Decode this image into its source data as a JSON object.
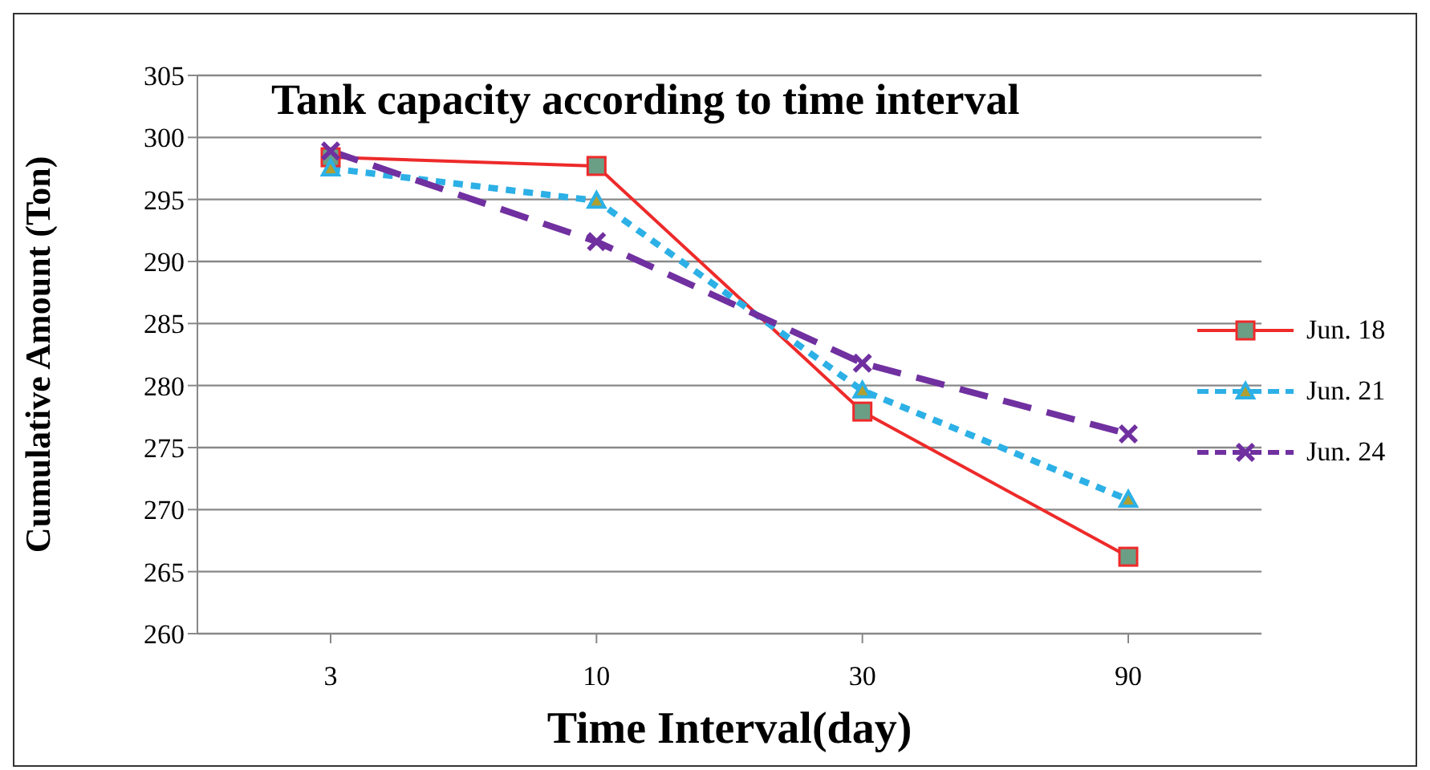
{
  "chart_data": {
    "type": "line",
    "title": "Tank capacity according to time interval",
    "xlabel": "Time Interval(day)",
    "ylabel": "Cumulative Amount (Ton)",
    "categories": [
      "3",
      "10",
      "30",
      "90"
    ],
    "series": [
      {
        "name": "Jun. 18",
        "color": "#ee2a2a",
        "values": [
          298.4,
          297.7,
          277.9,
          266.2
        ],
        "marker": "square",
        "line_style": "solid"
      },
      {
        "name": "Jun. 21",
        "color": "#2cb0e6",
        "values": [
          297.5,
          294.9,
          279.6,
          270.8
        ],
        "marker": "triangle",
        "line_style": "dotted"
      },
      {
        "name": "Jun. 24",
        "color": "#7030a0",
        "values": [
          298.9,
          291.6,
          281.8,
          276.1
        ],
        "marker": "cross",
        "line_style": "dashed"
      }
    ],
    "ylim": [
      260,
      305
    ],
    "yticks": [
      260,
      265,
      270,
      275,
      280,
      285,
      290,
      295,
      300,
      305
    ],
    "grid": "y",
    "legend": "right"
  }
}
